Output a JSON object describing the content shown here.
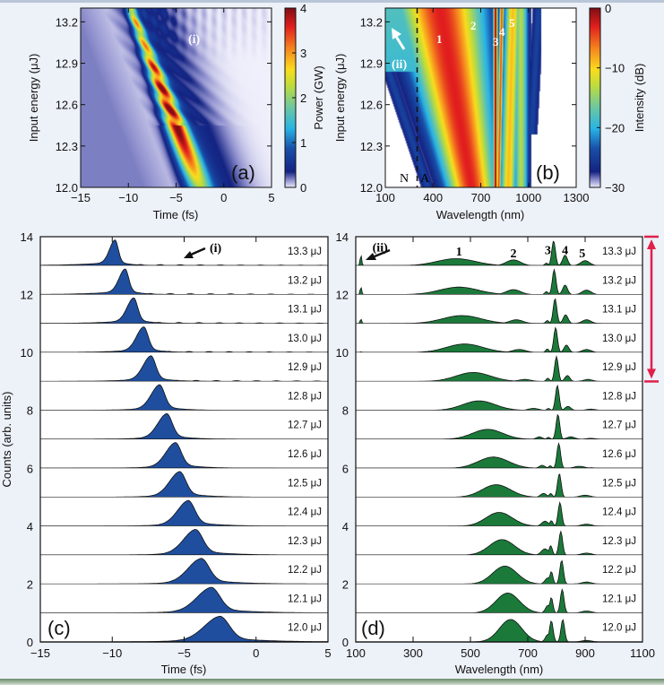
{
  "chart_data": [
    {
      "id": "a",
      "type": "heatmap",
      "panel_label": "(a)",
      "xlabel": "Time (fs)",
      "ylabel": "Input energy (μJ)",
      "xlim": [
        -15,
        5
      ],
      "ylim": [
        12.0,
        13.3
      ],
      "xticks": [
        "−15",
        "−10",
        "−5",
        "0",
        "5"
      ],
      "xtick_values": [
        -15,
        -10,
        -5,
        0,
        5
      ],
      "yticks": [
        "12.0",
        "12.3",
        "12.6",
        "12.9",
        "13.2"
      ],
      "ytick_values": [
        12.0,
        12.3,
        12.6,
        12.9,
        13.2
      ],
      "colorbar": {
        "label": "Power (GW)",
        "range": [
          0,
          4
        ],
        "ticks": [
          "0",
          "1",
          "2",
          "3",
          "4"
        ],
        "tick_values": [
          0,
          1,
          2,
          3,
          4
        ]
      },
      "annotations": [
        {
          "text": "(i)",
          "x": -3,
          "y": 13.1,
          "color": "#ffffff"
        }
      ],
      "description": "Main pulse peak moves from about -2.5 fs at 12.0 uJ to about -9.5 fs at 13.3 uJ, peak power rising to ~4 GW near 12.6-13.1 uJ; oscillatory trailing fringes (i) above 12.9 uJ."
    },
    {
      "id": "b",
      "type": "heatmap",
      "panel_label": "(b)",
      "xlabel": "Wavelength (nm)",
      "ylabel": "Input energy (μJ)",
      "xlim": [
        100,
        1300
      ],
      "ylim": [
        12.0,
        13.3
      ],
      "xticks": [
        "100",
        "400",
        "700",
        "1000",
        "1300"
      ],
      "xtick_values": [
        100,
        400,
        700,
        1000,
        1300
      ],
      "yticks": [
        "12.0",
        "12.3",
        "12.6",
        "12.9",
        "13.2"
      ],
      "ytick_values": [
        12.0,
        12.3,
        12.6,
        12.9,
        13.2
      ],
      "colorbar": {
        "label": "Intensity (dB)",
        "range": [
          -30,
          0
        ],
        "ticks": [
          "−30",
          "−20",
          "−10",
          "0"
        ],
        "tick_values": [
          -30,
          -20,
          -10,
          0
        ]
      },
      "dashed_line_x": 300,
      "region_labels": [
        {
          "text": "N",
          "x": 250,
          "y": 12.05
        },
        {
          "text": "A",
          "x": 340,
          "y": 12.05
        }
      ],
      "annotations": [
        {
          "text": "1",
          "x": 460,
          "y": 13.1,
          "color": "#ffffff"
        },
        {
          "text": "2",
          "x": 655,
          "y": 13.2,
          "color": "#ffffff"
        },
        {
          "text": "3",
          "x": 800,
          "y": 13.05,
          "color": "#ffffff"
        },
        {
          "text": "4",
          "x": 835,
          "y": 13.15,
          "color": "#ffffff"
        },
        {
          "text": "5",
          "x": 885,
          "y": 13.22,
          "color": "#ffffff"
        },
        {
          "text": "(ii)",
          "x": 160,
          "y": 12.9,
          "color": "#ffffff"
        }
      ]
    },
    {
      "id": "c",
      "type": "area",
      "panel_label": "(c)",
      "xlabel": "Time (fs)",
      "ylabel": "Counts (arb. units)",
      "xlim": [
        -15,
        5
      ],
      "ylim": [
        0,
        14
      ],
      "xticks": [
        "−15",
        "−10",
        "−5",
        "0",
        "5"
      ],
      "xtick_values": [
        -15,
        -10,
        -5,
        0,
        5
      ],
      "yticks": [
        "0",
        "2",
        "4",
        "6",
        "8",
        "10",
        "12",
        "14"
      ],
      "ytick_values": [
        0,
        2,
        4,
        6,
        8,
        10,
        12,
        14
      ],
      "fill_color": "#1f4e9e",
      "annotation": {
        "text": "(i)",
        "x": -4.5,
        "y": 13.55
      },
      "unit_label": "μJ",
      "series": [
        {
          "energy": "13.3",
          "peak_t": -9.8,
          "width": 0.45,
          "lead": 2.2,
          "tail": 0.35,
          "ripple": 1
        },
        {
          "energy": "13.2",
          "peak_t": -9.1,
          "width": 0.5,
          "lead": 2.0,
          "tail": 0.4,
          "ripple": 1
        },
        {
          "energy": "13.1",
          "peak_t": -8.5,
          "width": 0.55,
          "lead": 1.8,
          "tail": 0.45,
          "ripple": 1
        },
        {
          "energy": "13.0",
          "peak_t": -7.8,
          "width": 0.6,
          "lead": 1.7,
          "tail": 0.5,
          "ripple": 1
        },
        {
          "energy": "12.9",
          "peak_t": -7.3,
          "width": 0.65,
          "lead": 1.6,
          "tail": 0.6,
          "ripple": 1
        },
        {
          "energy": "12.8",
          "peak_t": -6.7,
          "width": 0.7,
          "lead": 1.5,
          "tail": 0.7,
          "ripple": 0
        },
        {
          "energy": "12.7",
          "peak_t": -6.2,
          "width": 0.75,
          "lead": 1.5,
          "tail": 0.8,
          "ripple": 0
        },
        {
          "energy": "12.6",
          "peak_t": -5.6,
          "width": 0.8,
          "lead": 1.5,
          "tail": 0.9,
          "ripple": 0
        },
        {
          "energy": "12.5",
          "peak_t": -5.3,
          "width": 0.85,
          "lead": 1.5,
          "tail": 1.0,
          "ripple": 0
        },
        {
          "energy": "12.4",
          "peak_t": -4.7,
          "width": 0.9,
          "lead": 1.6,
          "tail": 1.2,
          "ripple": 0
        },
        {
          "energy": "12.3",
          "peak_t": -4.2,
          "width": 1.0,
          "lead": 1.7,
          "tail": 1.4,
          "ripple": 0
        },
        {
          "energy": "12.2",
          "peak_t": -3.8,
          "width": 1.1,
          "lead": 1.8,
          "tail": 1.6,
          "ripple": 0
        },
        {
          "energy": "12.1",
          "peak_t": -3.1,
          "width": 1.2,
          "lead": 2.0,
          "tail": 1.8,
          "ripple": 0
        },
        {
          "energy": "12.0",
          "peak_t": -2.5,
          "width": 1.3,
          "lead": 2.2,
          "tail": 2.0,
          "ripple": 0
        }
      ]
    },
    {
      "id": "d",
      "type": "area",
      "panel_label": "(d)",
      "xlabel": "Wavelength (nm)",
      "ylabel": "",
      "xlim": [
        100,
        1100
      ],
      "ylim": [
        0,
        14
      ],
      "xticks": [
        "100",
        "300",
        "500",
        "700",
        "900",
        "1100"
      ],
      "xtick_values": [
        100,
        300,
        500,
        700,
        900,
        1100
      ],
      "yticks": [
        "0",
        "2",
        "4",
        "6",
        "8",
        "10",
        "12",
        "14"
      ],
      "ytick_values": [
        0,
        2,
        4,
        6,
        8,
        10,
        12,
        14
      ],
      "fill_color": "#1b7a3a",
      "peak_labels": [
        {
          "text": "(ii)",
          "x": 185,
          "y": 13.65
        },
        {
          "text": "1",
          "x": 460,
          "y": 13.5
        },
        {
          "text": "2",
          "x": 650,
          "y": 13.45
        },
        {
          "text": "3",
          "x": 770,
          "y": 13.55
        },
        {
          "text": "4",
          "x": 830,
          "y": 13.55
        },
        {
          "text": "5",
          "x": 890,
          "y": 13.45
        }
      ],
      "range_marker": {
        "from": 9,
        "to": 14,
        "color": "#e0204a"
      },
      "unit_label": "μJ",
      "series": [
        {
          "energy": "13.3",
          "p1": [
            450,
            0.28,
            95
          ],
          "p2": [
            650,
            0.23,
            35
          ],
          "p3": [
            790,
            1.0,
            9
          ],
          "p3b": [
            765,
            0.1,
            8
          ],
          "p4": [
            830,
            0.42,
            12
          ],
          "p5": [
            900,
            0.2,
            22
          ],
          "uv": 0.42
        },
        {
          "energy": "13.2",
          "p1": [
            460,
            0.3,
            95
          ],
          "p2": [
            650,
            0.2,
            35
          ],
          "p3": [
            792,
            1.0,
            9
          ],
          "p3b": [
            765,
            0.12,
            8
          ],
          "p4": [
            830,
            0.38,
            12
          ],
          "p5": [
            905,
            0.18,
            22
          ],
          "uv": 0.3
        },
        {
          "energy": "13.1",
          "p1": [
            470,
            0.32,
            95
          ],
          "p2": [
            660,
            0.15,
            33
          ],
          "p3": [
            795,
            1.0,
            9
          ],
          "p3b": [
            768,
            0.12,
            8
          ],
          "p4": [
            832,
            0.35,
            12
          ],
          "p5": [
            905,
            0.15,
            22
          ],
          "uv": 0.18
        },
        {
          "energy": "13.0",
          "p1": [
            480,
            0.34,
            90
          ],
          "p2": [
            670,
            0.12,
            33
          ],
          "p3": [
            797,
            1.0,
            9
          ],
          "p3b": [
            768,
            0.14,
            8
          ],
          "p4": [
            835,
            0.3,
            12
          ],
          "p5": [
            905,
            0.12,
            22
          ],
          "uv": 0.03
        },
        {
          "energy": "12.9",
          "p1": [
            510,
            0.36,
            85
          ],
          "p2": [
            690,
            0.08,
            30
          ],
          "p3": [
            800,
            1.0,
            9
          ],
          "p3b": [
            770,
            0.13,
            8
          ],
          "p4": [
            838,
            0.24,
            12
          ],
          "p5": [
            910,
            0.08,
            22
          ],
          "uv": 0
        },
        {
          "energy": "12.8",
          "p1": [
            530,
            0.38,
            80
          ],
          "p2": [
            720,
            0.08,
            25
          ],
          "p3": [
            803,
            1.0,
            9
          ],
          "p3b": [
            772,
            0.08,
            8
          ],
          "p4": [
            840,
            0.16,
            14
          ],
          "p5": [
            920,
            0.05,
            22
          ],
          "uv": 0
        },
        {
          "energy": "12.7",
          "p1": [
            560,
            0.4,
            75
          ],
          "p2": [
            740,
            0.1,
            15
          ],
          "p3": [
            805,
            1.0,
            9
          ],
          "p3b": [
            772,
            0.08,
            8
          ],
          "p4": [
            850,
            0.1,
            20
          ],
          "p5": [
            920,
            0.04,
            22
          ],
          "uv": 0
        },
        {
          "energy": "12.6",
          "p1": [
            580,
            0.45,
            75
          ],
          "p2": [
            750,
            0.12,
            14
          ],
          "p3": [
            808,
            1.0,
            9
          ],
          "p3b": [
            778,
            0.1,
            8
          ],
          "p4": [
            880,
            0.08,
            25
          ],
          "p5": [
            920,
            0.02,
            20
          ],
          "uv": 0
        },
        {
          "energy": "12.5",
          "p1": [
            590,
            0.5,
            70
          ],
          "p2": [
            755,
            0.15,
            15
          ],
          "p3": [
            810,
            0.95,
            9
          ],
          "p3b": [
            780,
            0.15,
            8
          ],
          "p4": [
            900,
            0.08,
            25
          ],
          "p5": [
            920,
            0.0,
            20
          ],
          "uv": 0
        },
        {
          "energy": "12.4",
          "p1": [
            600,
            0.55,
            65
          ],
          "p2": [
            760,
            0.2,
            16
          ],
          "p3": [
            812,
            0.95,
            9
          ],
          "p3b": [
            782,
            0.22,
            8
          ],
          "p4": [
            905,
            0.08,
            25
          ],
          "p5": [
            920,
            0.0,
            20
          ],
          "uv": 0
        },
        {
          "energy": "12.3",
          "p1": [
            610,
            0.62,
            62
          ],
          "p2": [
            760,
            0.25,
            18
          ],
          "p3": [
            815,
            0.95,
            9
          ],
          "p3b": [
            780,
            0.38,
            8
          ],
          "p4": [
            905,
            0.08,
            25
          ],
          "p5": [
            920,
            0.0,
            20
          ],
          "uv": 0
        },
        {
          "energy": "12.2",
          "p1": [
            620,
            0.72,
            60
          ],
          "p2": [
            770,
            0.25,
            14
          ],
          "p3": [
            818,
            0.95,
            9
          ],
          "p3b": [
            782,
            0.5,
            8
          ],
          "p4": [
            905,
            0.08,
            25
          ],
          "p5": [
            920,
            0.0,
            20
          ],
          "uv": 0
        },
        {
          "energy": "12.1",
          "p1": [
            630,
            0.8,
            58
          ],
          "p2": [
            770,
            0.3,
            12
          ],
          "p3": [
            820,
            0.95,
            9
          ],
          "p3b": [
            782,
            0.62,
            8
          ],
          "p4": [
            905,
            0.08,
            25
          ],
          "p5": [
            920,
            0.0,
            20
          ],
          "uv": 0
        },
        {
          "energy": "12.0",
          "p1": [
            640,
            0.9,
            55
          ],
          "p2": [
            770,
            0.3,
            12
          ],
          "p3": [
            822,
            0.9,
            9
          ],
          "p3b": [
            782,
            0.85,
            9
          ],
          "p4": [
            905,
            0.06,
            25
          ],
          "p5": [
            920,
            0.0,
            20
          ],
          "uv": 0
        }
      ]
    }
  ]
}
